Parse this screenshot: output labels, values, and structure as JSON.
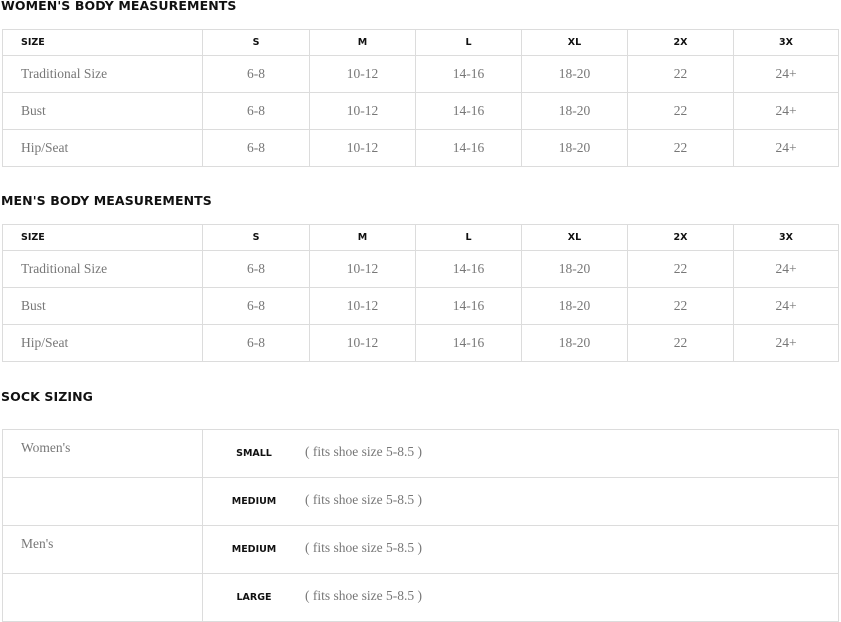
{
  "womens": {
    "title": "WOMEN'S BODY MEASUREMENTS",
    "headers": [
      "SIZE",
      "S",
      "M",
      "L",
      "XL",
      "2X",
      "3X"
    ],
    "rows": [
      [
        "Traditional Size",
        "6-8",
        "10-12",
        "14-16",
        "18-20",
        "22",
        "24+"
      ],
      [
        "Bust",
        "6-8",
        "10-12",
        "14-16",
        "18-20",
        "22",
        "24+"
      ],
      [
        "Hip/Seat",
        "6-8",
        "10-12",
        "14-16",
        "18-20",
        "22",
        "24+"
      ]
    ]
  },
  "mens": {
    "title": "MEN'S BODY MEASUREMENTS",
    "headers": [
      "SIZE",
      "S",
      "M",
      "L",
      "XL",
      "2X",
      "3X"
    ],
    "rows": [
      [
        "Traditional Size",
        "6-8",
        "10-12",
        "14-16",
        "18-20",
        "22",
        "24+"
      ],
      [
        "Bust",
        "6-8",
        "10-12",
        "14-16",
        "18-20",
        "22",
        "24+"
      ],
      [
        "Hip/Seat",
        "6-8",
        "10-12",
        "14-16",
        "18-20",
        "22",
        "24+"
      ]
    ]
  },
  "socks": {
    "title": "SOCK SIZING",
    "rows": [
      {
        "group": "Women's",
        "size": "SMALL",
        "fit": "( fits shoe size 5-8.5 )"
      },
      {
        "group": "",
        "size": "MEDIUM",
        "fit": "( fits shoe size 5-8.5 )"
      },
      {
        "group": "Men's",
        "size": "MEDIUM",
        "fit": "( fits shoe size 5-8.5 )"
      },
      {
        "group": "",
        "size": "LARGE",
        "fit": "( fits shoe size 5-8.5 )"
      }
    ]
  }
}
